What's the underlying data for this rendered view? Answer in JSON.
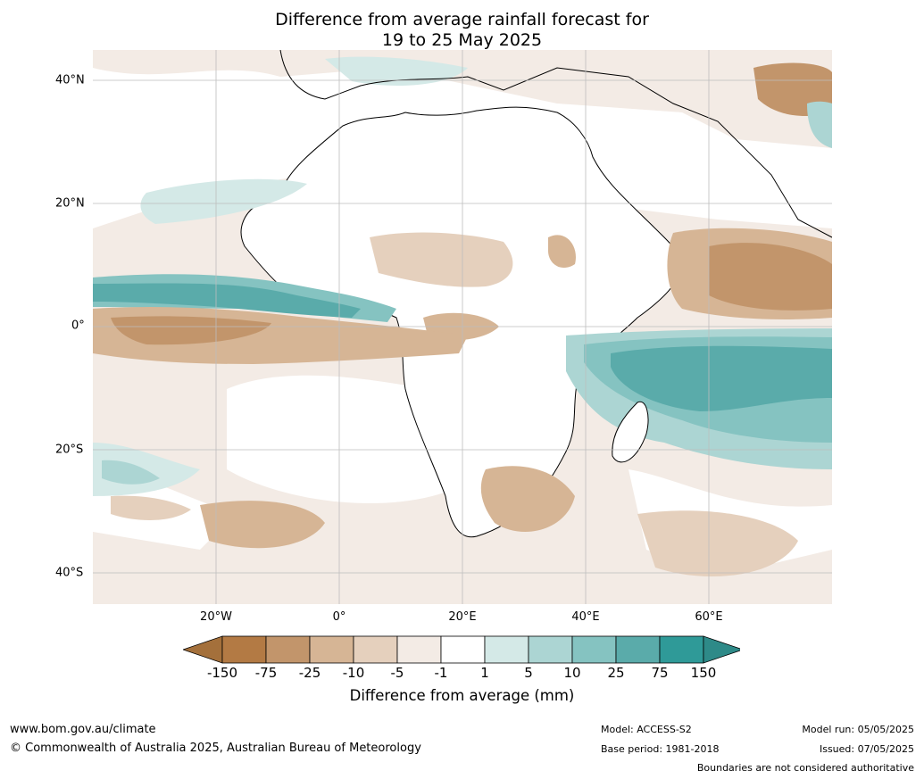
{
  "title_line1": "Difference from average rainfall forecast for",
  "title_line2": "19 to 25 May 2025",
  "map": {
    "lon_labels": [
      "20°W",
      "0°",
      "20°E",
      "40°E",
      "60°E"
    ],
    "lat_labels": [
      "40°N",
      "20°N",
      "0°",
      "20°S",
      "40°S"
    ],
    "lon_range": [
      -40,
      80
    ],
    "lat_range": [
      -45,
      45
    ],
    "grid": true
  },
  "colorbar": {
    "title": "Difference from average (mm)",
    "ticks": [
      "-150",
      "-75",
      "-25",
      "-10",
      "-5",
      "-1",
      "1",
      "5",
      "10",
      "25",
      "75",
      "150"
    ],
    "colors": [
      "#a4703b",
      "#b37a44",
      "#c2956b",
      "#d6b595",
      "#e5d0bd",
      "#f3ebe5",
      "#ffffff",
      "#d4e9e7",
      "#acd5d3",
      "#85c3c1",
      "#5aabaa",
      "#2f9a98",
      "#2e8a88"
    ]
  },
  "footer": {
    "website": "www.bom.gov.au/climate",
    "copyright": "© Commonwealth of Australia 2025, Australian Bureau of Meteorology",
    "model": "Model: ACCESS-S2",
    "base_period": "Base period: 1981-2018",
    "model_run": "Model run: 05/05/2025",
    "issued": "Issued: 07/05/2025",
    "disclaimer": "Boundaries are not considered authoritative"
  }
}
